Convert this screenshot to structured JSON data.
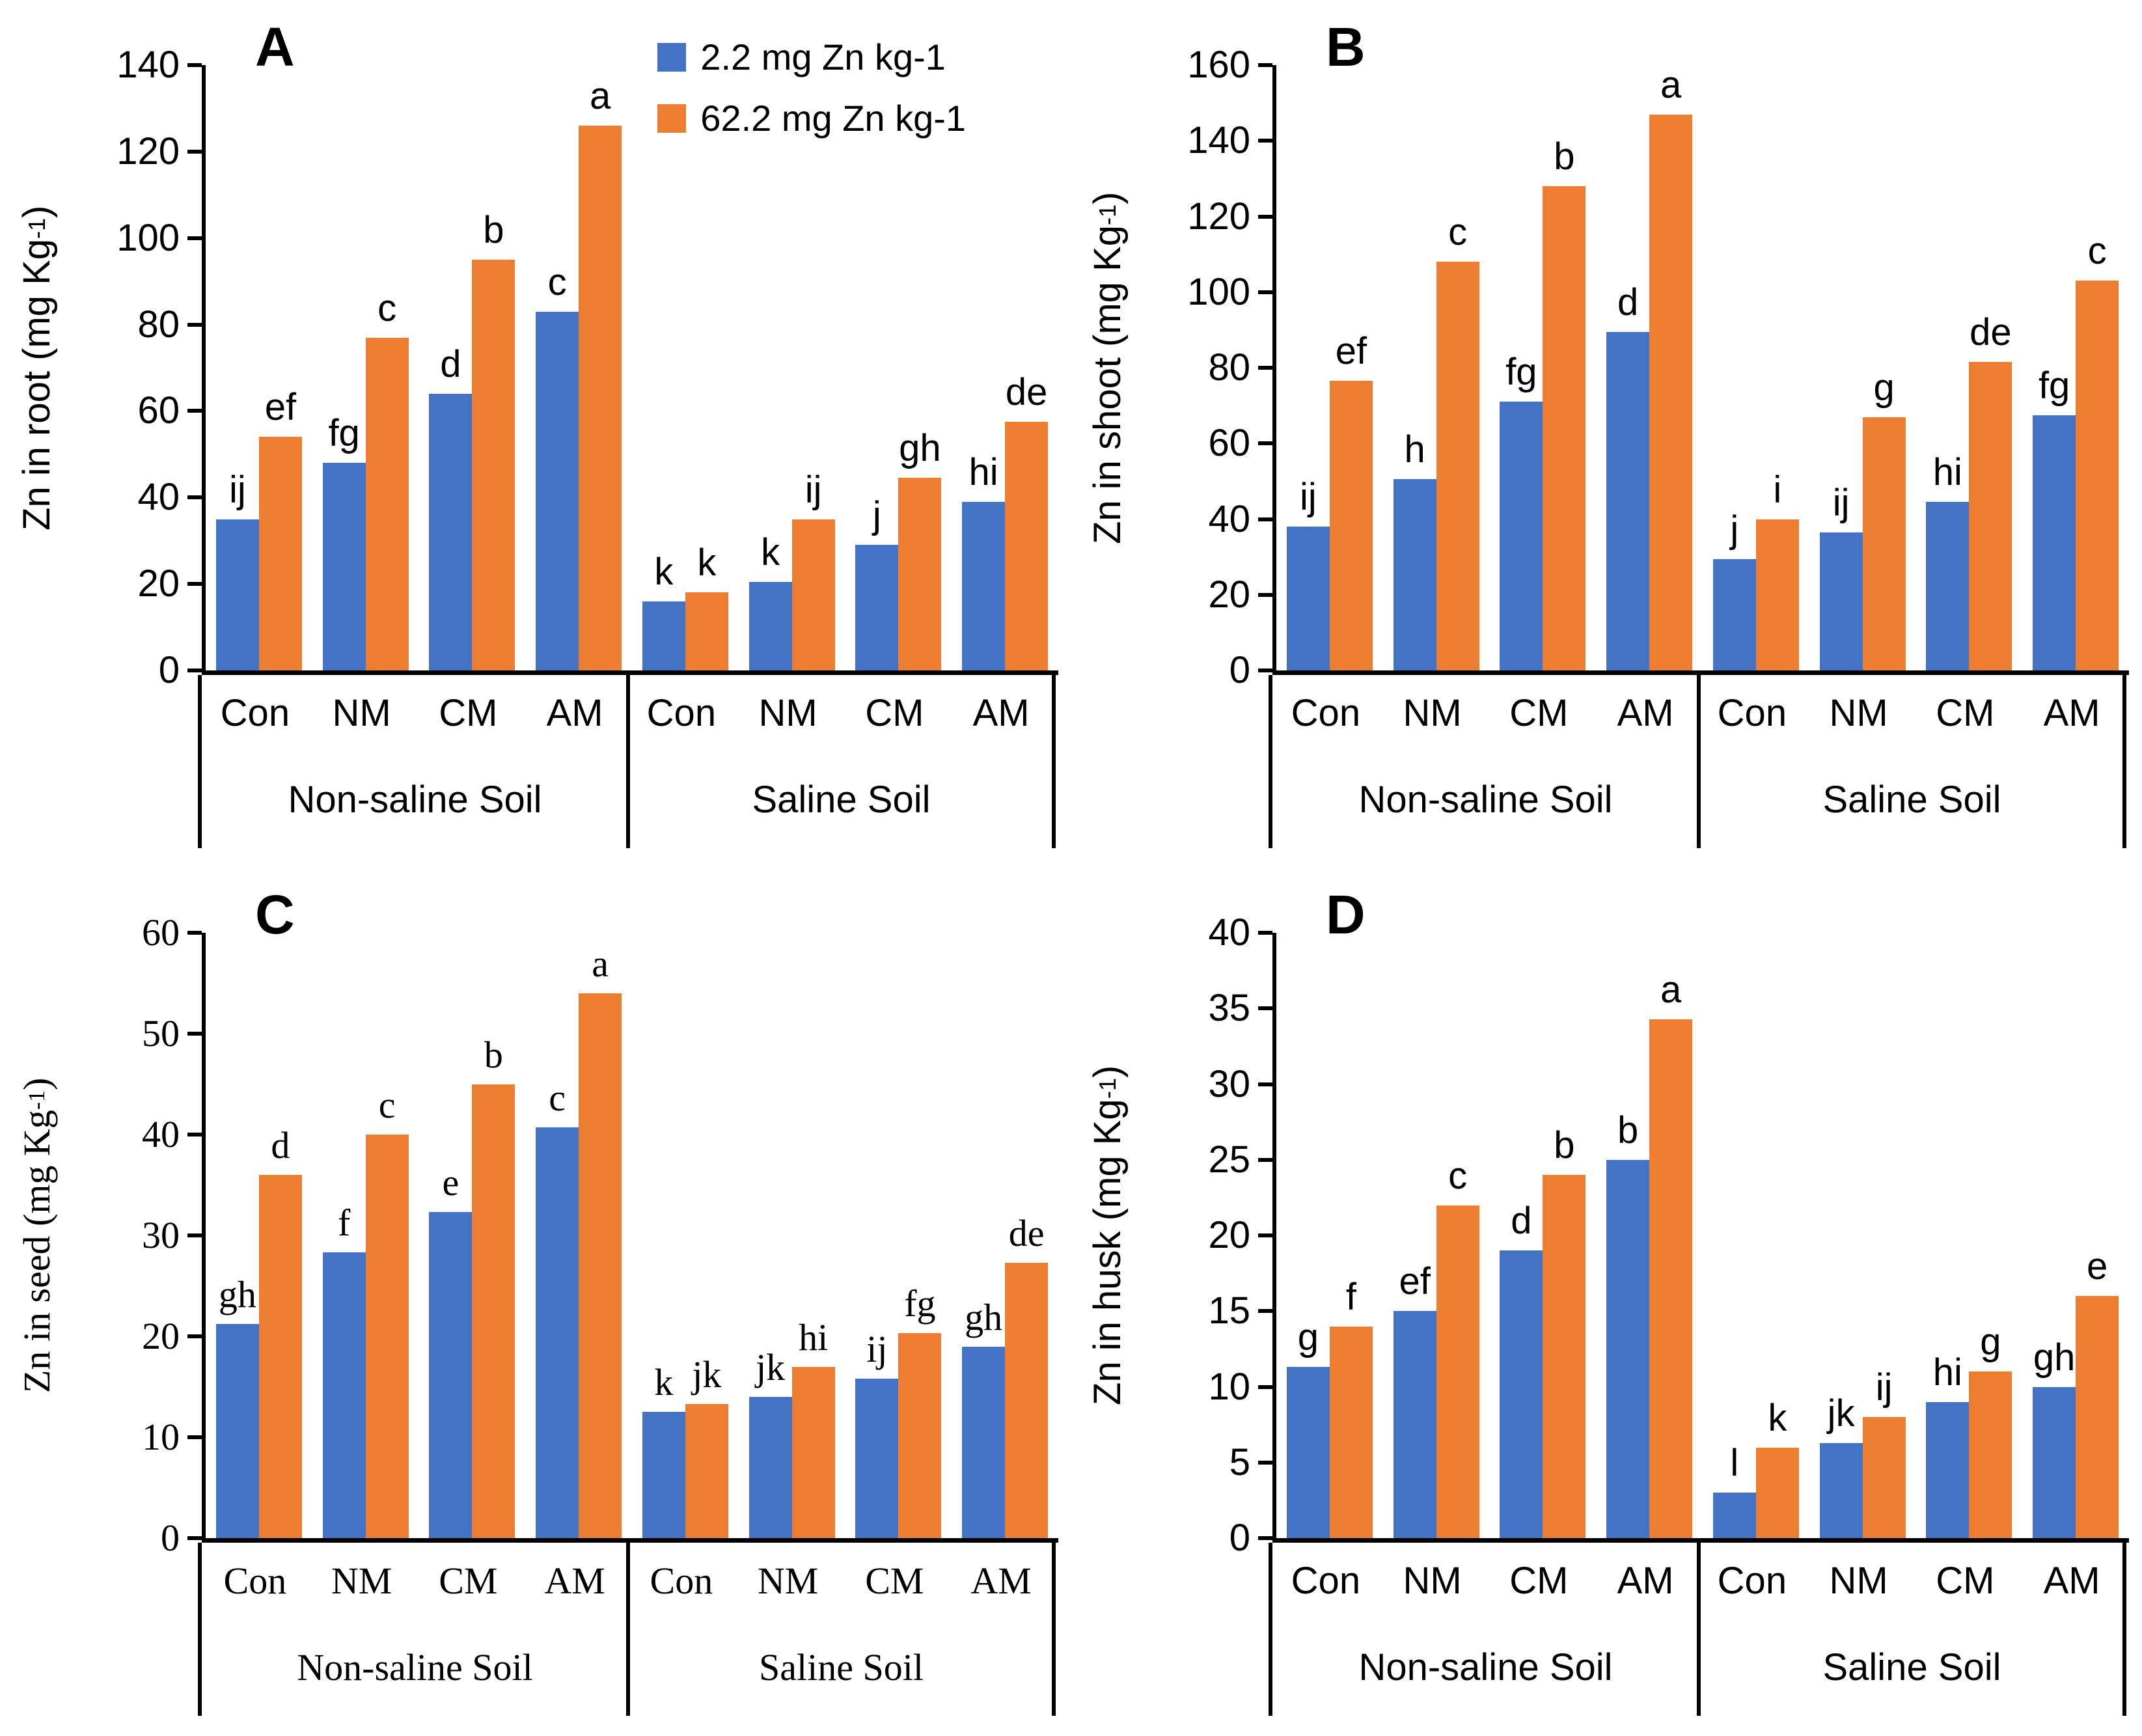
{
  "colors": {
    "low": "#4472C4",
    "high": "#ED7D31",
    "axis": "#000000"
  },
  "legend": {
    "items": [
      {
        "label": "2.2 mg Zn kg-1",
        "color_key": "low"
      },
      {
        "label": "62.2 mg Zn kg-1",
        "color_key": "high"
      }
    ]
  },
  "chart_data": {
    "type": "bar",
    "treatments": [
      "Con",
      "NM",
      "CM",
      "AM"
    ],
    "soils": [
      "Non-saline Soil",
      "Saline Soil"
    ],
    "series_names": [
      "2.2 mg Zn kg-1",
      "62.2 mg Zn kg-1"
    ],
    "legend_position": "top-center of panel A",
    "grid": false,
    "panels": [
      {
        "letter": "A",
        "ylabel": "Zn in root (mg Kg-1)",
        "ylabel_base": "Zn in root (mg Kg",
        "ylabel_sup": "-1",
        "ylabel_close": ")",
        "ymax": 140,
        "ystep": 20,
        "yticks": [
          0,
          20,
          40,
          60,
          80,
          100,
          120,
          140
        ],
        "groups": [
          {
            "soil": "Non-saline Soil",
            "values_low": [
              35,
              48,
              64,
              83
            ],
            "letters_low": [
              "ij",
              "fg",
              "d",
              "c"
            ],
            "values_high": [
              54,
              77,
              95,
              126
            ],
            "letters_high": [
              "ef",
              "c",
              "b",
              "a"
            ]
          },
          {
            "soil": "Saline Soil",
            "values_low": [
              16,
              20.5,
              29,
              39
            ],
            "letters_low": [
              "k",
              "k",
              "j",
              "hi"
            ],
            "values_high": [
              18,
              35,
              44.5,
              57.5
            ],
            "letters_high": [
              "k",
              "ij",
              "gh",
              "de"
            ]
          }
        ]
      },
      {
        "letter": "B",
        "ylabel": "Zn in shoot (mg Kg-1)",
        "ylabel_base": "Zn in shoot (mg Kg",
        "ylabel_sup": "-1",
        "ylabel_close": ")",
        "ymax": 160,
        "ystep": 20,
        "yticks": [
          0,
          20,
          40,
          60,
          80,
          100,
          120,
          140,
          160
        ],
        "groups": [
          {
            "soil": "Non-saline Soil",
            "values_low": [
              38,
              50.5,
              71,
              89.5
            ],
            "letters_low": [
              "ij",
              "h",
              "fg",
              "d"
            ],
            "values_high": [
              76.5,
              108,
              128,
              147
            ],
            "letters_high": [
              "ef",
              "c",
              "b",
              "a"
            ]
          },
          {
            "soil": "Saline Soil",
            "values_low": [
              29.5,
              36.5,
              44.5,
              67.5
            ],
            "letters_low": [
              "j",
              "ij",
              "hi",
              "fg"
            ],
            "values_high": [
              40,
              67,
              81.5,
              103
            ],
            "letters_high": [
              "i",
              "g",
              "de",
              "c"
            ]
          }
        ]
      },
      {
        "letter": "C",
        "ylabel": "Zn in seed (mg Kg-1)",
        "ylabel_base": "Zn in seed (mg Kg",
        "ylabel_sup": "-1",
        "ylabel_close": ")",
        "ymax": 60,
        "ystep": 10,
        "yticks": [
          0,
          10,
          20,
          30,
          40,
          50,
          60
        ],
        "groups": [
          {
            "soil": "Non-saline Soil",
            "values_low": [
              21.2,
              28.3,
              32.3,
              40.7
            ],
            "letters_low": [
              "gh",
              "f",
              "e",
              "c"
            ],
            "values_high": [
              36,
              40,
              45,
              54
            ],
            "letters_high": [
              "d",
              "c",
              "b",
              "a"
            ]
          },
          {
            "soil": "Saline Soil",
            "values_low": [
              12.5,
              14,
              15.8,
              19
            ],
            "letters_low": [
              "k",
              "jk",
              "ij",
              "gh"
            ],
            "values_high": [
              13.3,
              17,
              20.3,
              27.3
            ],
            "letters_high": [
              "jk",
              "hi",
              "fg",
              "de"
            ]
          }
        ]
      },
      {
        "letter": "D",
        "ylabel": "Zn in husk (mg Kg-1)",
        "ylabel_base": "Zn in husk (mg Kg",
        "ylabel_sup": "-1",
        "ylabel_close": ")",
        "ymax": 40,
        "ystep": 5,
        "yticks": [
          0,
          5,
          10,
          15,
          20,
          25,
          30,
          35,
          40
        ],
        "groups": [
          {
            "soil": "Non-saline Soil",
            "values_low": [
              11.3,
              15,
              19,
              25
            ],
            "letters_low": [
              "g",
              "ef",
              "d",
              "b"
            ],
            "values_high": [
              14,
              22,
              24,
              34.3
            ],
            "letters_high": [
              "f",
              "c",
              "b",
              "a"
            ]
          },
          {
            "soil": "Saline Soil",
            "values_low": [
              3,
              6.3,
              9,
              10
            ],
            "letters_low": [
              "l",
              "jk",
              "hi",
              "gh"
            ],
            "values_high": [
              6,
              8,
              11,
              16
            ],
            "letters_high": [
              "k",
              "ij",
              "g",
              "e"
            ]
          }
        ]
      }
    ]
  }
}
